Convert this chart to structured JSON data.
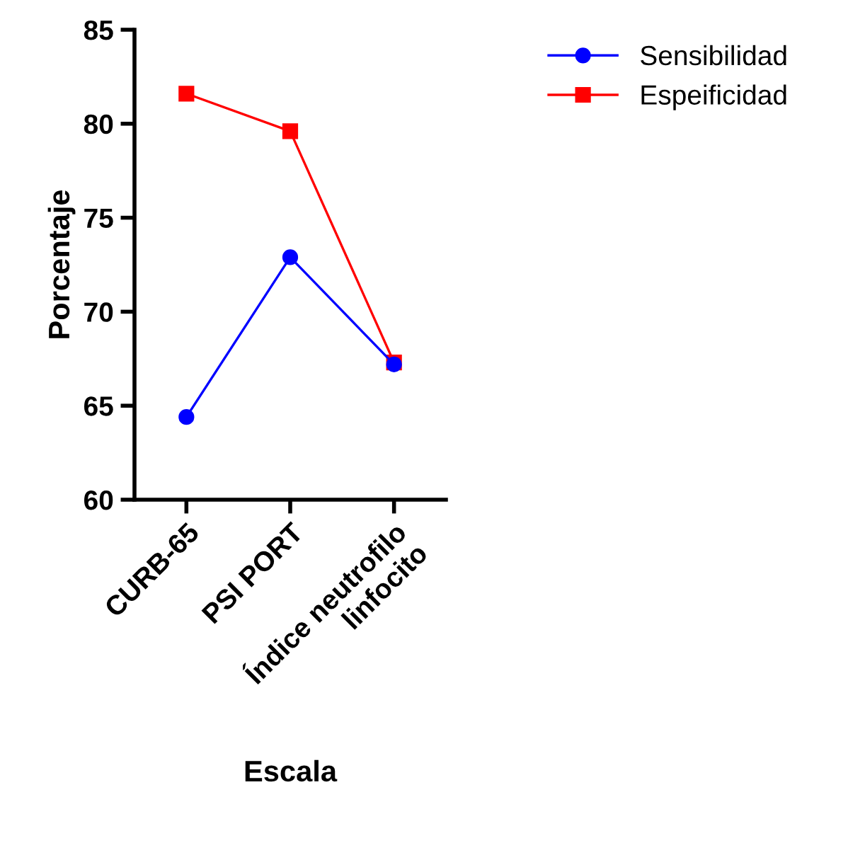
{
  "chart_data": {
    "type": "line",
    "xlabel": "Escala",
    "ylabel": "Porcentaje",
    "categories": [
      "CURB-65",
      "PSI PORT",
      "Índice neutrofilo\nlinfocito"
    ],
    "series": [
      {
        "name": "Sensibilidad",
        "color": "#0000ff",
        "marker": "circle",
        "values": [
          64.4,
          72.9,
          67.2
        ]
      },
      {
        "name": "Espeificidad",
        "color": "#ff0000",
        "marker": "square",
        "values": [
          81.6,
          79.6,
          67.3
        ]
      }
    ],
    "ylim": [
      60,
      85
    ],
    "yticks": [
      60,
      65,
      70,
      75,
      80,
      85
    ],
    "grid": false,
    "legend": "top right",
    "line_style": "solid"
  }
}
